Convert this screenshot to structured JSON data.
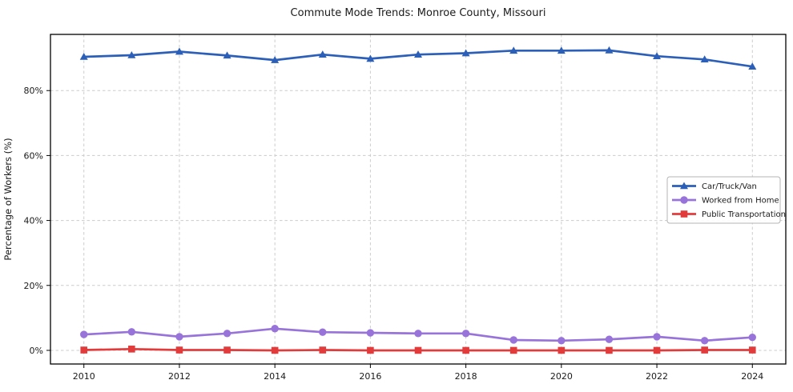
{
  "window": {
    "title": "Commute Mode Trends: Monroe County, Missouri"
  },
  "chart_data": {
    "type": "line",
    "title": "Commute Mode Trends: Monroe County, Missouri",
    "xlabel": "",
    "ylabel": "Percentage of Workers (%)",
    "x": [
      2010,
      2011,
      2012,
      2013,
      2014,
      2015,
      2016,
      2017,
      2018,
      2019,
      2020,
      2021,
      2022,
      2023,
      2024
    ],
    "series": [
      {
        "name": "Car/Truck/Van",
        "color": "#2c5fb8",
        "marker": "triangle",
        "values": [
          90.4,
          90.9,
          92.0,
          90.8,
          89.4,
          91.1,
          89.8,
          91.1,
          91.5,
          92.3,
          92.3,
          92.4,
          90.6,
          89.6,
          87.4
        ]
      },
      {
        "name": "Worked from Home",
        "color": "#9873d9",
        "marker": "circle",
        "values": [
          4.9,
          5.7,
          4.2,
          5.2,
          6.7,
          5.6,
          5.4,
          5.2,
          5.2,
          3.2,
          3.0,
          3.4,
          4.2,
          3.0,
          4.0
        ]
      },
      {
        "name": "Public Transportation",
        "color": "#e23b3c",
        "marker": "square",
        "values": [
          0.1,
          0.4,
          0.1,
          0.1,
          0.0,
          0.1,
          0.0,
          0.0,
          0.0,
          0.0,
          0.0,
          0.0,
          0.0,
          0.1,
          0.1
        ]
      }
    ],
    "xticks": [
      2010,
      2012,
      2014,
      2016,
      2018,
      2020,
      2022,
      2024
    ],
    "xtick_labels": [
      "2010",
      "2012",
      "2014",
      "2016",
      "2018",
      "2020",
      "2022",
      "2024"
    ],
    "yticks": [
      0,
      20,
      40,
      60,
      80
    ],
    "ytick_labels": [
      "0%",
      "20%",
      "40%",
      "60%",
      "80%"
    ],
    "xlim": [
      2009.3,
      2024.7
    ],
    "ylim": [
      -4.2,
      97.3
    ],
    "grid": true,
    "grid_style": "dashed",
    "legend_position": "center-right",
    "legend_labels": [
      "Car/Truck/Van",
      "Worked from Home",
      "Public Transportation"
    ]
  },
  "colors": {
    "background": "#ffffff",
    "grid": "#cccccc",
    "axis_frame": "#000000",
    "tick_text": "#1a1a1a",
    "legend_border": "#b4b4b4",
    "legend_fill": "#ffffff"
  }
}
